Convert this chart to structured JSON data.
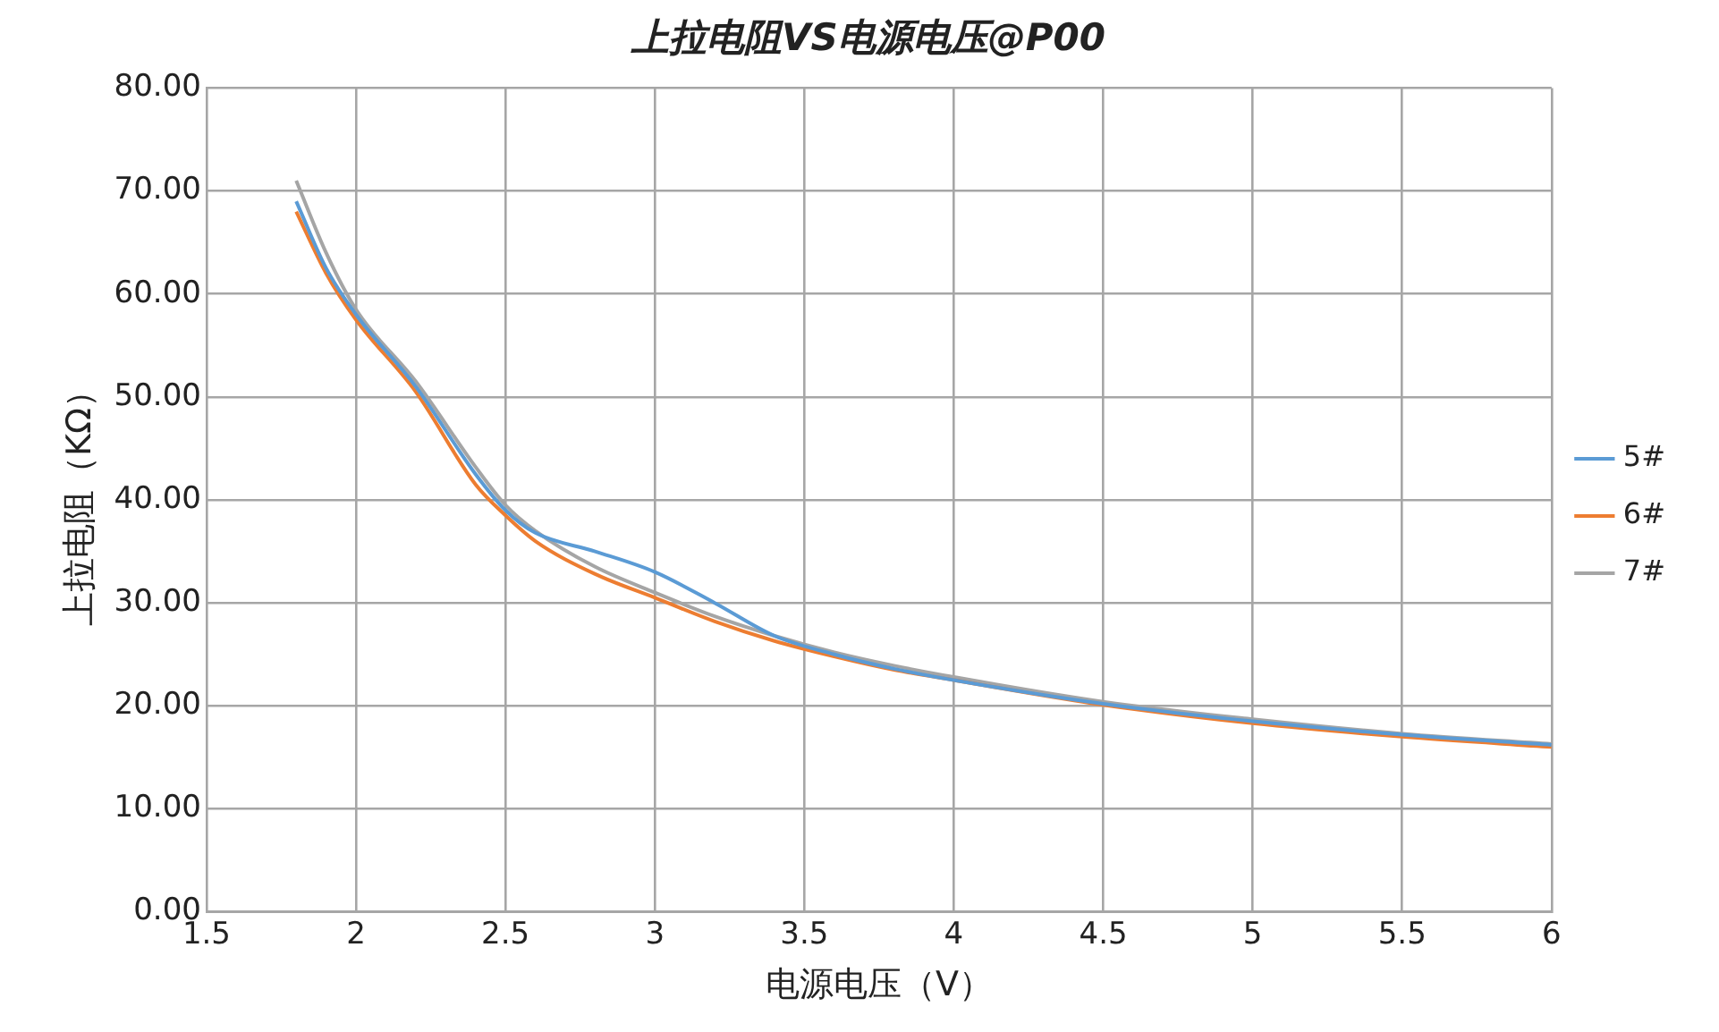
{
  "chart_data": {
    "type": "line",
    "title": "上拉电阻VS电源电压@P00",
    "xlabel": "电源电压（V）",
    "ylabel": "上拉电阻（KΩ）",
    "x": [
      1.8,
      1.9,
      2.0,
      2.2,
      2.4,
      2.5,
      2.6,
      2.8,
      3.0,
      3.2,
      3.4,
      3.6,
      3.8,
      4.0,
      4.5,
      5.0,
      5.5,
      6.0
    ],
    "series": [
      {
        "name": "5#",
        "color": "#5b9bd5",
        "values": [
          69,
          62.5,
          58,
          51,
          42.5,
          39,
          36.8,
          35,
          33,
          30,
          26.8,
          25,
          23.6,
          22.5,
          20.2,
          18.5,
          17.2,
          16.2
        ]
      },
      {
        "name": "6#",
        "color": "#ed7d31",
        "values": [
          68,
          62,
          57.5,
          50.5,
          41.5,
          38.5,
          36,
          32.8,
          30.5,
          28.2,
          26.3,
          24.8,
          23.5,
          22.5,
          20.1,
          18.3,
          17.0,
          16.0
        ]
      },
      {
        "name": "7#",
        "color": "#a5a5a5",
        "values": [
          71,
          64,
          58.5,
          51.5,
          43.2,
          39.5,
          37,
          33.5,
          31,
          28.7,
          26.8,
          25.2,
          23.9,
          22.8,
          20.4,
          18.7,
          17.3,
          16.3
        ]
      }
    ],
    "xlim": [
      1.5,
      6
    ],
    "xticks": [
      1.5,
      2,
      2.5,
      3,
      3.5,
      4,
      4.5,
      5,
      5.5,
      6
    ],
    "ylim": [
      0,
      80
    ],
    "yticks": [
      {
        "value": 0,
        "label": "0.00"
      },
      {
        "value": 10,
        "label": "10.00"
      },
      {
        "value": 20,
        "label": "20.00"
      },
      {
        "value": 30,
        "label": "30.00"
      },
      {
        "value": 40,
        "label": "40.00"
      },
      {
        "value": 50,
        "label": "50.00"
      },
      {
        "value": 60,
        "label": "60.00"
      },
      {
        "value": 70,
        "label": "70.00"
      },
      {
        "value": 80,
        "label": "80.00"
      }
    ],
    "grid": true,
    "legend": "right",
    "marker": "none",
    "line_style": "solid"
  }
}
